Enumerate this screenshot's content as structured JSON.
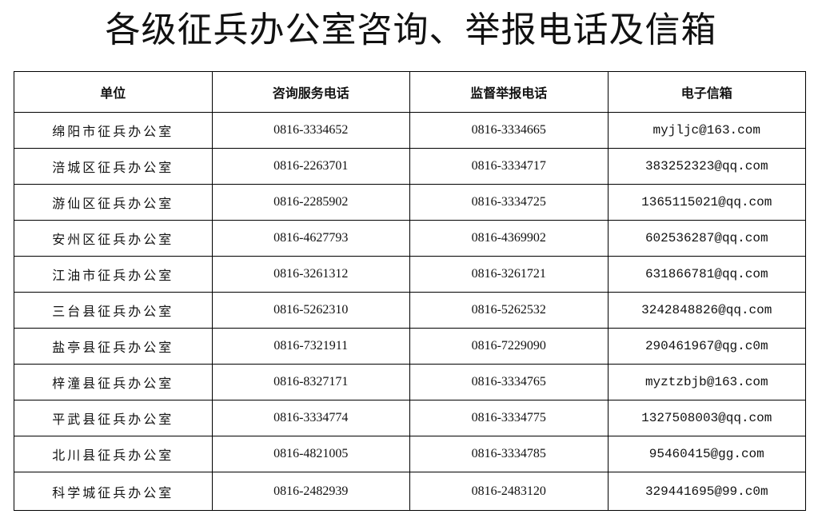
{
  "title": "各级征兵办公室咨询、举报电话及信箱",
  "headers": [
    "单位",
    "咨询服务电话",
    "监督举报电话",
    "电子信箱"
  ],
  "rows": [
    [
      "绵阳市征兵办公室",
      "0816-3334652",
      "0816-3334665",
      "myjljc@163.com"
    ],
    [
      "涪城区征兵办公室",
      "0816-2263701",
      "0816-3334717",
      "383252323@qq.com"
    ],
    [
      "游仙区征兵办公室",
      "0816-2285902",
      "0816-3334725",
      "1365115021@qq.com"
    ],
    [
      "安州区征兵办公室",
      "0816-4627793",
      "0816-4369902",
      "602536287@qq.com"
    ],
    [
      "江油市征兵办公室",
      "0816-3261312",
      "0816-3261721",
      "631866781@qq.com"
    ],
    [
      "三台县征兵办公室",
      "0816-5262310",
      "0816-5262532",
      "3242848826@qq.com"
    ],
    [
      "盐亭县征兵办公室",
      "0816-7321911",
      "0816-7229090",
      "290461967@qg.c0m"
    ],
    [
      "梓潼县征兵办公室",
      "0816-8327171",
      "0816-3334765",
      "myztzbjb@163.com"
    ],
    [
      "平武县征兵办公室",
      "0816-3334774",
      "0816-3334775",
      "1327508003@qq.com"
    ],
    [
      "北川县征兵办公室",
      "0816-4821005",
      "0816-3334785",
      "95460415@gg.com"
    ],
    [
      "科学城征兵办公室",
      "0816-2482939",
      "0816-2483120",
      "329441695@99.c0m"
    ]
  ]
}
